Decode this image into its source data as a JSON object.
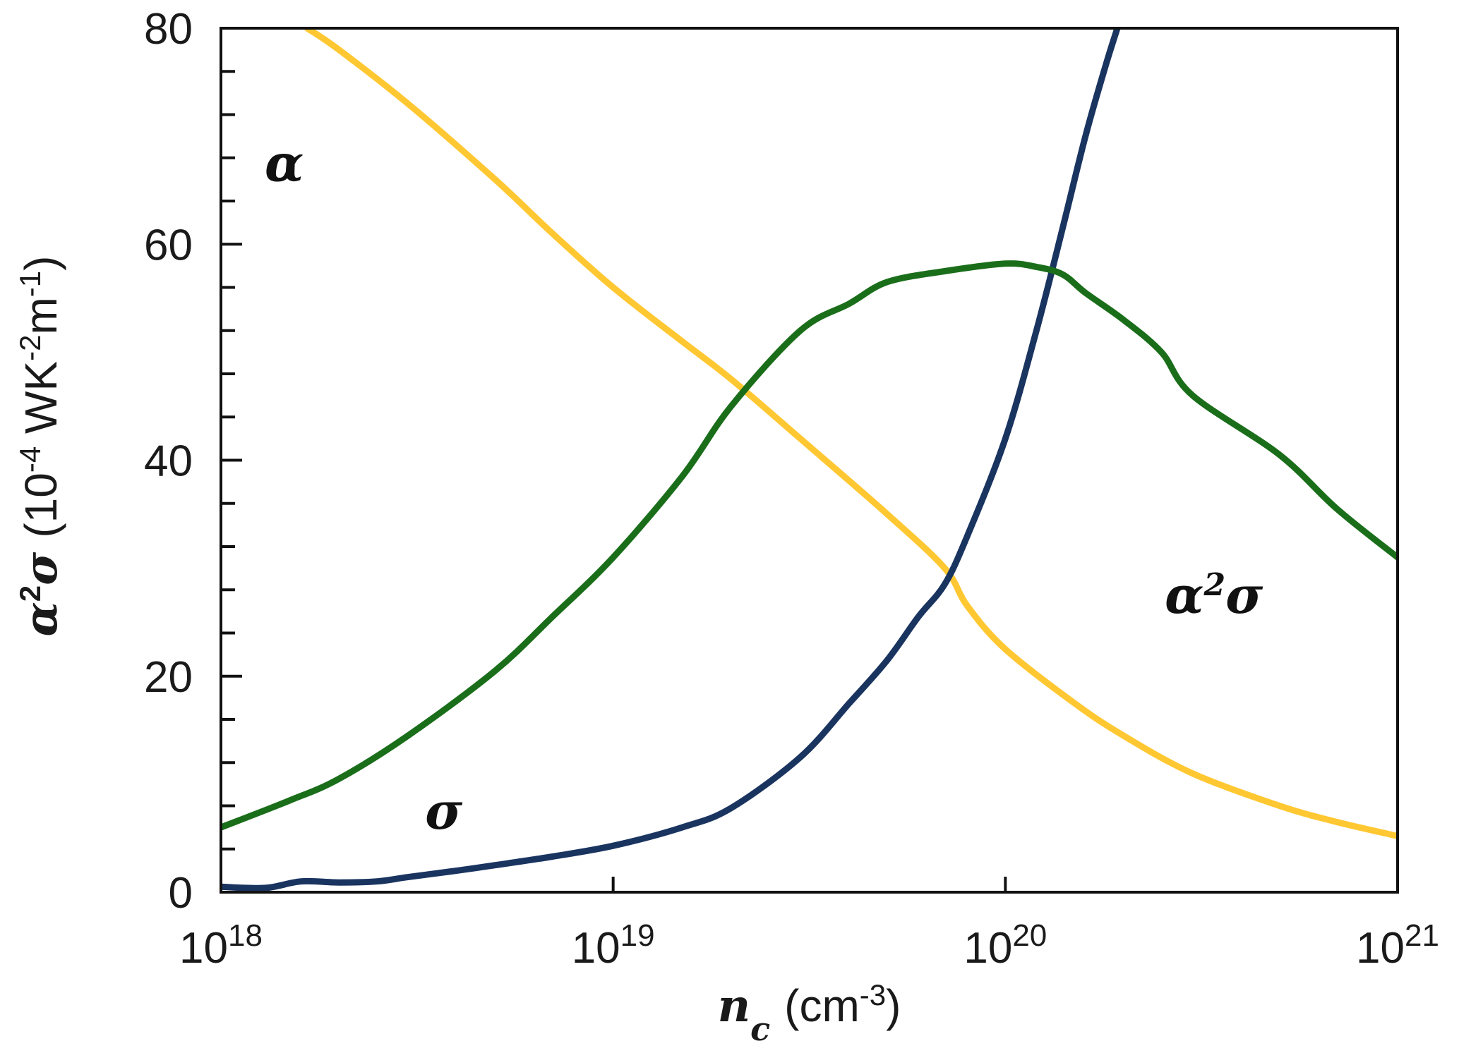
{
  "chart_data": {
    "type": "line",
    "x_scale": "log",
    "xlim": [
      1e+18,
      1e+21
    ],
    "ylim": [
      0,
      80
    ],
    "grid": false,
    "legend": "none",
    "xlabel": {
      "symbol": "n",
      "subscript": "c",
      "unit_base": "(cm",
      "unit_exp": "-3",
      "unit_close": ")"
    },
    "ylabel": {
      "symbol": "α",
      "symbol_sup": "2",
      "symbol2": "σ",
      "unit_base": "(10",
      "unit_exp1": "-4",
      "unit_mid": " WK",
      "unit_exp2": "-2",
      "unit_m": "m",
      "unit_exp3": "-1",
      "unit_close": ")"
    },
    "y_major_ticks": [
      "0",
      "20",
      "40",
      "60",
      "80"
    ],
    "y_minor_step": 4,
    "x_ticks": [
      {
        "base": "10",
        "exp": "18",
        "value": 1e+18
      },
      {
        "base": "10",
        "exp": "19",
        "value": 1e+19
      },
      {
        "base": "10",
        "exp": "20",
        "value": 1e+20
      },
      {
        "base": "10",
        "exp": "21",
        "value": 1e+21
      }
    ],
    "series": [
      {
        "name": "α",
        "color": "#ffc832",
        "x": [
          1.66e+18,
          2e+18,
          3e+18,
          5e+18,
          7e+18,
          1e+19,
          1.5e+19,
          2e+19,
          3e+19,
          5e+19,
          7e+19,
          8e+19,
          1e+20,
          1.5e+20,
          2e+20,
          3e+20,
          5e+20,
          7e+20,
          1e+21
        ],
        "y": [
          80,
          78,
          73,
          66,
          61,
          56,
          51,
          47.5,
          42,
          35,
          30,
          26.5,
          22.5,
          17.5,
          14.5,
          11,
          8,
          6.5,
          5.2
        ]
      },
      {
        "name": "σ",
        "color": "#1a3460",
        "x": [
          1e+18,
          1.3e+18,
          1.6e+18,
          2e+18,
          2.5e+18,
          3e+18,
          4e+18,
          5e+18,
          7e+18,
          1e+19,
          1.5e+19,
          2e+19,
          3e+19,
          4e+19,
          5e+19,
          6e+19,
          7e+19,
          8e+19,
          1e+20,
          1.2e+20,
          1.4e+20,
          1.6e+20,
          1.8e+20,
          1.93e+20
        ],
        "y": [
          0.5,
          0.4,
          1.0,
          0.9,
          1.0,
          1.4,
          2.0,
          2.5,
          3.3,
          4.3,
          6.0,
          7.8,
          12.5,
          17.5,
          21.5,
          25.5,
          28.5,
          33,
          42,
          52,
          61.5,
          70,
          76.5,
          80
        ]
      },
      {
        "name": "α²σ",
        "color": "#1a6e1a",
        "x": [
          1e+18,
          1.5e+18,
          2e+18,
          3e+18,
          5e+18,
          7e+18,
          1e+19,
          1.5e+19,
          2e+19,
          3e+19,
          4e+19,
          5e+19,
          7e+19,
          1e+20,
          1.2e+20,
          1.4e+20,
          1.6e+20,
          2e+20,
          2.5e+20,
          3e+20,
          5e+20,
          7e+20,
          1e+21
        ],
        "y": [
          6,
          8.5,
          10.5,
          14.5,
          20.5,
          25.5,
          31,
          38.5,
          45,
          52,
          54.5,
          56.5,
          57.5,
          58.2,
          57.9,
          57.2,
          55.5,
          53,
          50,
          46,
          40.5,
          35.5,
          31
        ]
      }
    ],
    "annotations": [
      {
        "series": "α",
        "text": "α",
        "at_x": 1.45e+18,
        "at_y": 67.5
      },
      {
        "series": "σ",
        "text": "σ",
        "at_x": 3.7e+18,
        "at_y": 7.5
      },
      {
        "series": "α²σ",
        "text_main": "α",
        "text_sup": "2",
        "text_end": "σ",
        "at_x": 3.4e+20,
        "at_y": 27.5
      }
    ]
  }
}
